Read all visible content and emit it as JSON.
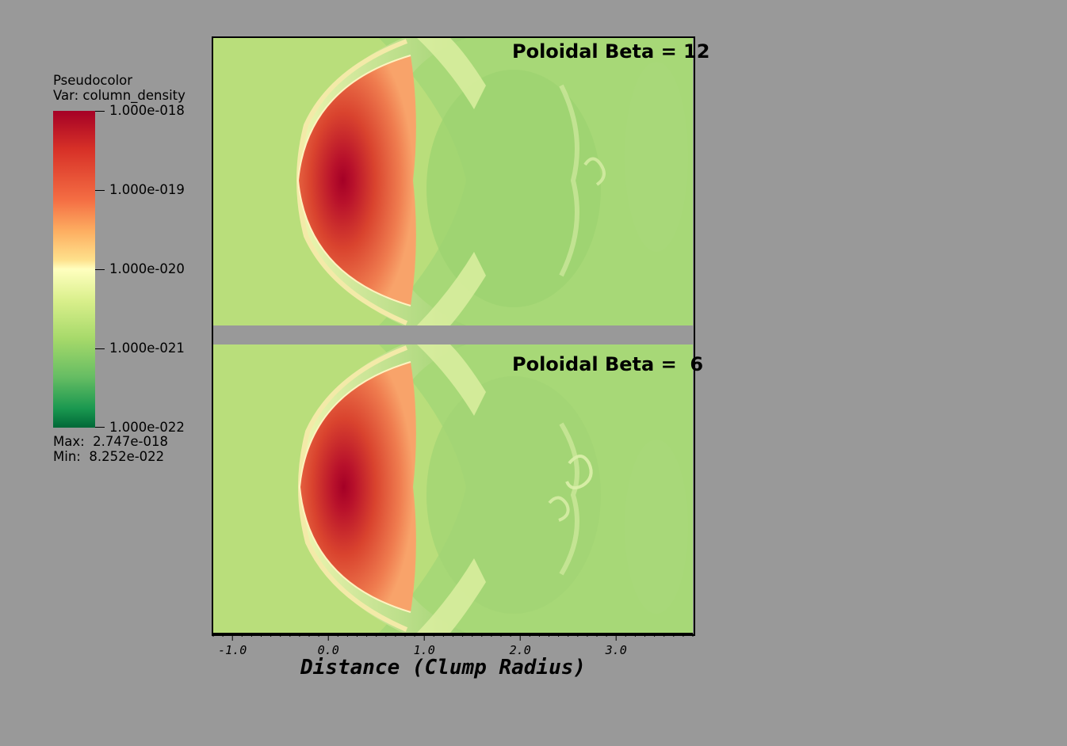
{
  "legend": {
    "plot_type": "Pseudocolor",
    "variable": "Var: column_density",
    "max_text": "Max:  2.747e-018",
    "min_text": "Min:  8.252e-022"
  },
  "chart_data": {
    "type": "heatmap",
    "colorbar": {
      "scale": "log",
      "ticks": [
        "1.000e-018",
        "1.000e-019",
        "1.000e-020",
        "1.000e-021",
        "1.000e-022"
      ],
      "max": 2.747e-18,
      "min": 8.252e-22,
      "colormap": [
        "#a50026",
        "#d73027",
        "#f46d43",
        "#fdae61",
        "#fee08b",
        "#ffffbf",
        "#d9ef8b",
        "#a6d96a",
        "#66bd63",
        "#1a9850",
        "#006837"
      ]
    },
    "panels": [
      {
        "title": "Poloidal Beta = 12"
      },
      {
        "title": "Poloidal Beta =  6"
      }
    ],
    "xaxis": {
      "title": "Distance (Clump Radius)",
      "ticks": [
        "-1.0",
        "0.0",
        "1.0",
        "2.0",
        "3.0"
      ],
      "tick_values": [
        -1.0,
        0.0,
        1.0,
        2.0,
        3.0
      ],
      "range": [
        -1.2,
        3.8
      ],
      "minor_step": 0.1
    }
  }
}
